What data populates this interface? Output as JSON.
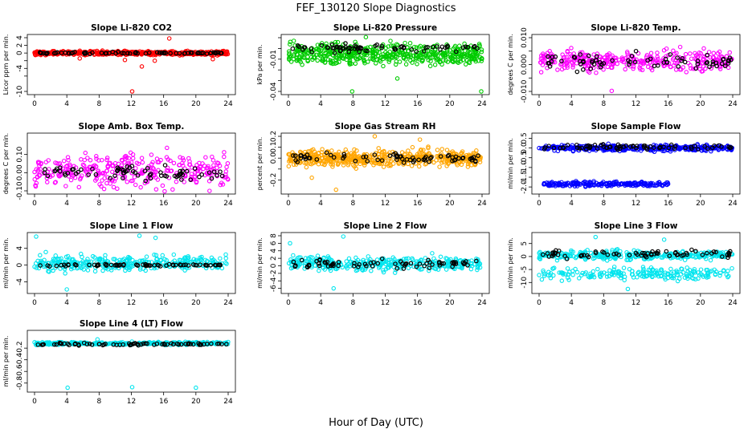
{
  "main_title": "FEF_130120  Slope Diagnostics",
  "x_label": "Hour of Day (UTC)",
  "colors": {
    "red": "#ff0000",
    "green": "#00cc00",
    "magenta": "#ff00ff",
    "orange": "#ffa500",
    "blue": "#0000ff",
    "cyan": "#00e5ee",
    "black": "#000000"
  },
  "chart_data": [
    {
      "type": "scatter",
      "title": "Slope Li-820 CO2",
      "ylabel": "Licor ppm per min.",
      "xlim": [
        0,
        24
      ],
      "ylim": [
        -10,
        4
      ],
      "yticks": [
        -10,
        -6,
        -4,
        -2,
        0,
        2,
        4
      ],
      "ytick_labels": [
        "-10",
        "",
        "-4",
        "",
        "0",
        "2",
        "4"
      ],
      "xticks": [
        0,
        4,
        8,
        12,
        16,
        20,
        24
      ],
      "color": "red",
      "series": [
        {
          "style": "filled-band",
          "center": 0,
          "spread": 0.6,
          "outliers": [
            [
              12.1,
              -10
            ],
            [
              13.3,
              -3.5
            ],
            [
              14.9,
              -2
            ],
            [
              11.2,
              -1.8
            ],
            [
              5.6,
              -1.4
            ],
            [
              16.7,
              3.8
            ],
            [
              22.1,
              -1.6
            ]
          ]
        },
        {
          "color": "black",
          "center": 0,
          "spread": 0.3
        }
      ]
    },
    {
      "type": "scatter",
      "title": "Slope Li-820 Pressure",
      "ylabel": "kPa per min.",
      "xlim": [
        0,
        24
      ],
      "ylim": [
        -0.04,
        0.01
      ],
      "yticks": [
        -0.04,
        -0.03,
        -0.02,
        -0.01,
        0.0,
        0.01
      ],
      "ytick_labels": [
        "-0.04",
        "",
        "",
        "-0.01",
        "",
        ""
      ],
      "xticks": [
        0,
        4,
        8,
        12,
        16,
        20,
        24
      ],
      "color": "green",
      "series": [
        {
          "style": "filled-band",
          "center": -0.005,
          "spread": 0.012,
          "outliers": [
            [
              7.9,
              -0.04
            ],
            [
              23.9,
              -0.04
            ],
            [
              13.5,
              -0.028
            ],
            [
              9.6,
              0.0105
            ]
          ]
        },
        {
          "color": "black",
          "center": 0.0,
          "spread": 0.004
        }
      ]
    },
    {
      "type": "scatter",
      "title": "Slope Li-820 Temp.",
      "ylabel": "degrees C per min.",
      "xlim": [
        0,
        24
      ],
      "ylim": [
        -0.01,
        0.01
      ],
      "yticks": [
        -0.01,
        -0.005,
        0.0,
        0.005,
        0.01
      ],
      "ytick_labels": [
        "-0.010",
        "",
        "0.000",
        "",
        "0.010"
      ],
      "xticks": [
        0,
        4,
        8,
        12,
        16,
        20,
        24
      ],
      "color": "magenta",
      "series": [
        {
          "style": "band",
          "center": 0.0015,
          "spread": 0.0045,
          "outliers": [
            [
              9.0,
              -0.0098
            ]
          ]
        },
        {
          "color": "black",
          "center": 0.001,
          "spread": 0.0035
        }
      ]
    },
    {
      "type": "scatter",
      "title": "Slope Amb. Box Temp.",
      "ylabel": "degrees C per min.",
      "xlim": [
        0,
        24
      ],
      "ylim": [
        -0.1,
        0.2
      ],
      "yticks": [
        -0.1,
        0.0,
        0.1
      ],
      "ytick_labels": [
        "-0.10",
        "0.00",
        "0.10"
      ],
      "xticks": [
        0,
        4,
        8,
        12,
        16,
        20,
        24
      ],
      "color": "magenta",
      "series": [
        {
          "style": "band",
          "center": 0.01,
          "spread": 0.11,
          "outliers": []
        },
        {
          "color": "black",
          "center": 0.0,
          "spread": 0.05
        }
      ]
    },
    {
      "type": "scatter",
      "title": "Slope Gas Stream RH",
      "ylabel": "percent per min.",
      "xlim": [
        0,
        24
      ],
      "ylim": [
        -0.3,
        0.2
      ],
      "yticks": [
        -0.2,
        -0.1,
        0.0,
        0.1,
        0.2
      ],
      "ytick_labels": [
        "-0.2",
        "",
        "0.0",
        "0.1",
        "0.2"
      ],
      "xticks": [
        0,
        4,
        8,
        12,
        16,
        20,
        24
      ],
      "color": "orange",
      "series": [
        {
          "style": "filled-band",
          "center": 0.0,
          "spread": 0.09,
          "outliers": [
            [
              5.9,
              -0.29
            ],
            [
              2.9,
              -0.18
            ],
            [
              10.7,
              0.2
            ],
            [
              16.3,
              0.17
            ]
          ]
        },
        {
          "color": "black",
          "center": 0.0,
          "spread": 0.05
        }
      ]
    },
    {
      "type": "scatter",
      "title": "Slope Sample Flow",
      "ylabel": "ml/min per min.",
      "xlim": [
        0,
        24
      ],
      "ylim": [
        -2.2,
        0.6
      ],
      "yticks": [
        -2.0,
        -1.5,
        -1.0,
        -0.5,
        0.0,
        0.5
      ],
      "ytick_labels": [
        "-2.0",
        "-1.5",
        "-1.0",
        "-0.5",
        "0.0",
        "0.5"
      ],
      "xticks": [
        0,
        4,
        8,
        12,
        16,
        20,
        24
      ],
      "color": "blue",
      "series": [
        {
          "style": "two-bands",
          "center": 0.0,
          "spread": 0.18,
          "lower_center": -1.85,
          "lower_spread": 0.15,
          "lower_range": [
            0.5,
            16.0
          ],
          "outliers": []
        },
        {
          "color": "black",
          "center": 0.05,
          "spread": 0.15
        }
      ]
    },
    {
      "type": "scatter",
      "title": "Slope Line 1 Flow",
      "ylabel": "ml/min per min.",
      "xlim": [
        0,
        24
      ],
      "ylim": [
        -6,
        7
      ],
      "yticks": [
        -4,
        0,
        4
      ],
      "ytick_labels": [
        "-4",
        "0",
        "4"
      ],
      "xticks": [
        0,
        4,
        8,
        12,
        16,
        20,
        24
      ],
      "color": "cyan",
      "series": [
        {
          "style": "band",
          "center": 0.5,
          "spread": 2.2,
          "outliers": [
            [
              0.2,
              6.8
            ],
            [
              13.0,
              7.0
            ],
            [
              15.0,
              6.5
            ],
            [
              4.0,
              -5.8
            ]
          ]
        },
        {
          "color": "black",
          "center": 0.0,
          "spread": 0.3
        }
      ]
    },
    {
      "type": "scatter",
      "title": "Slope Line 2 Flow",
      "ylabel": "ml/min per min.",
      "xlim": [
        0,
        24
      ],
      "ylim": [
        -6.5,
        8
      ],
      "yticks": [
        -6,
        -4,
        -2,
        0,
        2,
        4,
        6,
        8
      ],
      "ytick_labels": [
        "-6",
        "-4",
        "-2",
        "0",
        "2",
        "4",
        "6",
        "8"
      ],
      "xticks": [
        0,
        4,
        8,
        12,
        16,
        20,
        24
      ],
      "color": "cyan",
      "series": [
        {
          "style": "band",
          "center": 0.5,
          "spread": 2.3,
          "outliers": [
            [
              0.2,
              6.0
            ],
            [
              6.8,
              7.8
            ],
            [
              5.6,
              -6.0
            ]
          ]
        },
        {
          "color": "black",
          "center": 0.5,
          "spread": 1.5
        }
      ]
    },
    {
      "type": "scatter",
      "title": "Slope Line 3 Flow",
      "ylabel": "ml/min per min.",
      "xlim": [
        0,
        24
      ],
      "ylim": [
        -13,
        8
      ],
      "yticks": [
        -10,
        -5,
        0,
        5
      ],
      "ytick_labels": [
        "-10",
        "-5",
        "0",
        "5"
      ],
      "xticks": [
        0,
        4,
        8,
        12,
        16,
        20,
        24
      ],
      "color": "cyan",
      "series": [
        {
          "style": "two-bands",
          "center": 0.5,
          "spread": 2.0,
          "lower_center": -6.5,
          "lower_spread": 3.0,
          "lower_range": [
            0.0,
            24.0
          ],
          "outliers": [
            [
              7.0,
              7.5
            ],
            [
              15.5,
              6.5
            ],
            [
              11.0,
              -12.5
            ]
          ]
        },
        {
          "color": "black",
          "center": 1.0,
          "spread": 1.8
        }
      ]
    },
    {
      "type": "scatter",
      "title": "Slope Line 4 (LT) Flow",
      "ylabel": "ml/min per min.",
      "xlim": [
        0,
        24
      ],
      "ylim": [
        -0.9,
        0.05
      ],
      "yticks": [
        -0.8,
        -0.6,
        -0.4,
        -0.2
      ],
      "ytick_labels": [
        "-0.8",
        "-0.6",
        "-0.4",
        "-0.2"
      ],
      "xticks": [
        0,
        4,
        8,
        12,
        16,
        20,
        24
      ],
      "color": "cyan",
      "series": [
        {
          "style": "band",
          "center": -0.12,
          "spread": 0.03,
          "outliers": [
            [
              4.1,
              -0.88
            ],
            [
              12.1,
              -0.87
            ],
            [
              20.0,
              -0.88
            ],
            [
              7.8,
              -0.05
            ]
          ]
        },
        {
          "color": "black",
          "center": -0.13,
          "spread": 0.025
        }
      ]
    }
  ]
}
